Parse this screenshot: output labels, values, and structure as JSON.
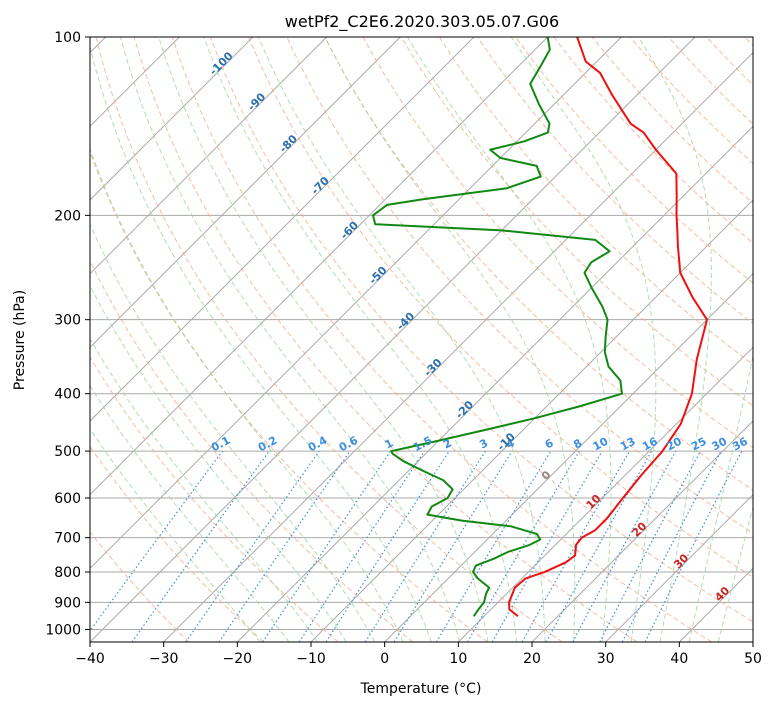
{
  "chart_data": {
    "type": "skew-t",
    "title": "wetPf2_C2E6.2020.303.05.07.G06",
    "xlabel": "Temperature (°C)",
    "ylabel": "Pressure (hPa)",
    "xlim": [
      -40,
      50
    ],
    "ylim": [
      1050,
      100
    ],
    "x_ticks": [
      -40,
      -30,
      -20,
      -10,
      0,
      10,
      20,
      30,
      40,
      50
    ],
    "y_ticks": [
      100,
      200,
      300,
      400,
      500,
      600,
      700,
      800,
      900,
      1000
    ],
    "colors": {
      "temperature": "#ee1111",
      "dewpoint": "#118811",
      "dry_adiabats": "#f4a582",
      "moist_adiabats": "#9fd49f",
      "mixing_ratio": "#3b8fe0",
      "grid": "#aaaaaa",
      "isotherm_labels": "#2a6fae",
      "positive_isotherm_labels": "#cc2222",
      "zero_label": "#888888"
    },
    "isotherm_labels_negative": [
      "-100",
      "-90",
      "-80",
      "-70",
      "-60",
      "-50",
      "-40",
      "-30",
      "-20",
      "-10"
    ],
    "isotherm_labels_positive": [
      "10",
      "20",
      "30",
      "40"
    ],
    "isotherm_label_zero": "0",
    "mixing_ratio_labels": [
      "0.1",
      "0.2",
      "0.4",
      "0.6",
      "1",
      "1.5",
      "2",
      "3",
      "4",
      "6",
      "8",
      "10",
      "13",
      "16",
      "20",
      "25",
      "30",
      "36"
    ],
    "temperature_profile": [
      [
        950,
        14.6
      ],
      [
        925,
        12.5
      ],
      [
        900,
        11.5
      ],
      [
        850,
        10.3
      ],
      [
        820,
        10.5
      ],
      [
        800,
        12.2
      ],
      [
        770,
        13.8
      ],
      [
        750,
        14.1
      ],
      [
        720,
        12.8
      ],
      [
        700,
        12.6
      ],
      [
        680,
        13.4
      ],
      [
        650,
        13.4
      ],
      [
        600,
        12.8
      ],
      [
        550,
        12.2
      ],
      [
        500,
        11.8
      ],
      [
        450,
        10.6
      ],
      [
        400,
        8.0
      ],
      [
        350,
        4.0
      ],
      [
        300,
        0.0
      ],
      [
        275,
        -5.0
      ],
      [
        250,
        -10.0
      ],
      [
        225,
        -14.0
      ],
      [
        210,
        -16.5
      ],
      [
        200,
        -18.3
      ],
      [
        185,
        -21.0
      ],
      [
        170,
        -24.0
      ],
      [
        155,
        -30.0
      ],
      [
        145,
        -34.0
      ],
      [
        140,
        -37.0
      ],
      [
        125,
        -43.5
      ],
      [
        115,
        -48.0
      ],
      [
        110,
        -51.5
      ],
      [
        100,
        -56.0
      ]
    ],
    "dewpoint_profile": [
      [
        950,
        8.6
      ],
      [
        925,
        8.3
      ],
      [
        900,
        8.1
      ],
      [
        870,
        7.2
      ],
      [
        850,
        6.8
      ],
      [
        820,
        4.0
      ],
      [
        800,
        2.5
      ],
      [
        780,
        2.0
      ],
      [
        760,
        3.5
      ],
      [
        740,
        4.5
      ],
      [
        720,
        6.5
      ],
      [
        705,
        7.2
      ],
      [
        690,
        6.0
      ],
      [
        670,
        1.5
      ],
      [
        655,
        -6.0
      ],
      [
        640,
        -11.5
      ],
      [
        620,
        -12.0
      ],
      [
        600,
        -11.0
      ],
      [
        580,
        -11.5
      ],
      [
        560,
        -14.0
      ],
      [
        540,
        -18.0
      ],
      [
        520,
        -22.0
      ],
      [
        505,
        -24.5
      ],
      [
        500,
        -25.0
      ],
      [
        480,
        -20.0
      ],
      [
        460,
        -15.0
      ],
      [
        440,
        -10.0
      ],
      [
        420,
        -5.5
      ],
      [
        400,
        -1.5
      ],
      [
        380,
        -3.5
      ],
      [
        360,
        -7.0
      ],
      [
        340,
        -9.5
      ],
      [
        320,
        -11.5
      ],
      [
        300,
        -13.5
      ],
      [
        285,
        -16.0
      ],
      [
        265,
        -20.0
      ],
      [
        250,
        -23.0
      ],
      [
        240,
        -23.5
      ],
      [
        230,
        -22.5
      ],
      [
        220,
        -26.0
      ],
      [
        212,
        -40.0
      ],
      [
        207,
        -58.0
      ],
      [
        200,
        -59.5
      ],
      [
        192,
        -59.0
      ],
      [
        188,
        -55.0
      ],
      [
        180,
        -45.0
      ],
      [
        172,
        -42.0
      ],
      [
        165,
        -44.0
      ],
      [
        160,
        -50.0
      ],
      [
        155,
        -52.5
      ],
      [
        150,
        -49.0
      ],
      [
        145,
        -47.0
      ],
      [
        140,
        -48.0
      ],
      [
        130,
        -52.0
      ],
      [
        120,
        -56.0
      ],
      [
        112,
        -57.0
      ],
      [
        105,
        -58.0
      ],
      [
        100,
        -60.0
      ]
    ]
  }
}
